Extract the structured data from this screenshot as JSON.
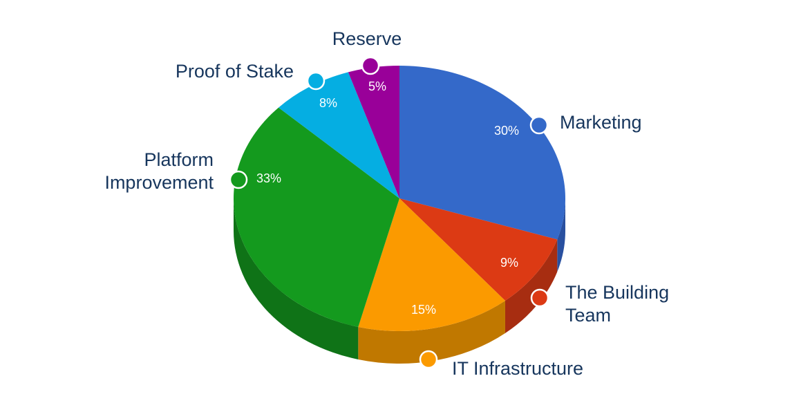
{
  "chart_data": {
    "type": "pie",
    "three_d": true,
    "legend": "none",
    "categories": [
      "Marketing",
      "The Building Team",
      "IT Infrastructure",
      "Platform Improvement",
      "Proof of Stake",
      "Reserve"
    ],
    "label_lines": [
      [
        "Marketing"
      ],
      [
        "The Building",
        "Team"
      ],
      [
        "IT Infrastructure"
      ],
      [
        "Platform",
        "Improvement"
      ],
      [
        "Proof of Stake"
      ],
      [
        "Reserve"
      ]
    ],
    "values": [
      30,
      9,
      15,
      33,
      8,
      5
    ],
    "value_labels": [
      "30%",
      "9%",
      "15%",
      "33%",
      "8%",
      "5%"
    ],
    "colors": [
      "#3469c9",
      "#dc3a14",
      "#fb9a00",
      "#149a1e",
      "#05aee2",
      "#990099"
    ],
    "side_colors": [
      "#2950a0",
      "#a72d11",
      "#c07800",
      "#0f7317",
      "#0485ad",
      "#740074"
    ]
  }
}
